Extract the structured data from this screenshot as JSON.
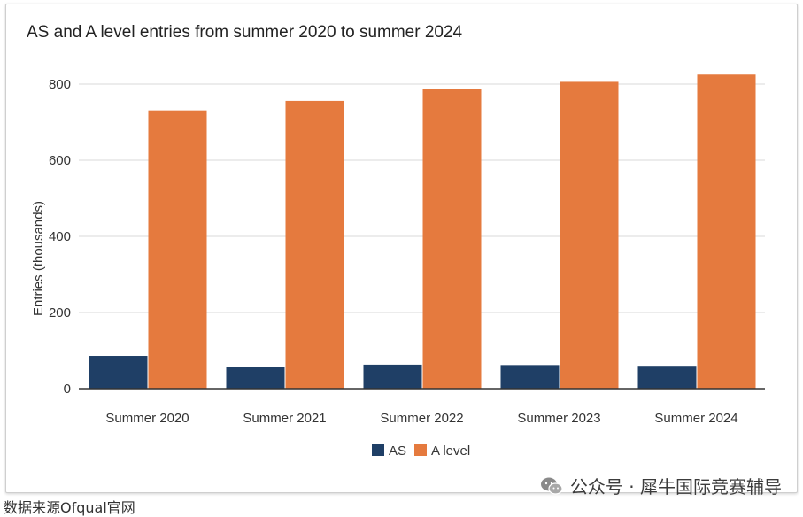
{
  "chart_data": {
    "type": "bar",
    "title": "AS and A level entries from summer 2020 to summer 2024",
    "xlabel": "",
    "ylabel": "Entries (thousands)",
    "categories": [
      "Summer 2020",
      "Summer 2021",
      "Summer 2022",
      "Summer 2023",
      "Summer 2024"
    ],
    "series": [
      {
        "name": "AS",
        "color": "#1f3f66",
        "values": [
          86,
          58,
          63,
          62,
          60
        ]
      },
      {
        "name": "A level",
        "color": "#e57a3e",
        "values": [
          731,
          756,
          788,
          806,
          825
        ]
      }
    ],
    "ylim": [
      0,
      800
    ],
    "yticks": [
      0,
      200,
      400,
      600,
      800
    ],
    "grid": true,
    "legend_position": "bottom-center"
  },
  "watermark": {
    "text": "公众号 · 犀牛国际竞赛辅导",
    "icon": "wechat-icon"
  },
  "source_note": "数据来源Ofqual官网"
}
